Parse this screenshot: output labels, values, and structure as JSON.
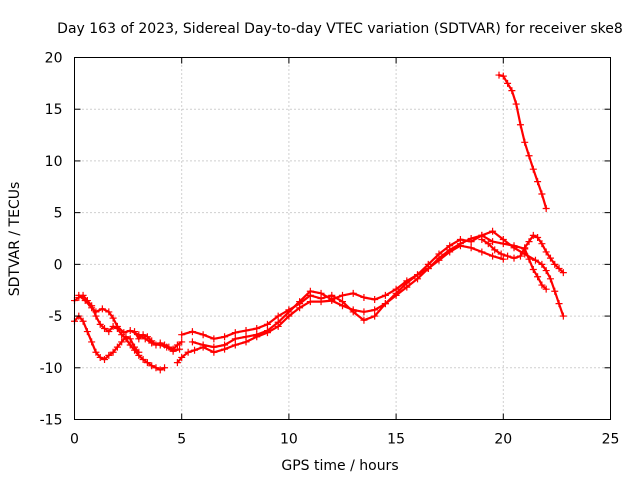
{
  "chart_data": {
    "type": "scatter",
    "title": "Day 163 of 2023, Sidereal Day-to-day VTEC variation (SDTVAR) for receiver ske8",
    "xlabel": "GPS time / hours",
    "ylabel": "SDTVAR / TECUs",
    "xlim": [
      0,
      25
    ],
    "ylim": [
      -15,
      20
    ],
    "x_ticks": [
      "0",
      "5",
      "10",
      "15",
      "20",
      "25"
    ],
    "y_ticks": [
      "-15",
      "-10",
      "-5",
      "0",
      "5",
      "10",
      "15",
      "20"
    ],
    "grid": true,
    "legend": "none",
    "marker": "+",
    "series_color": "#ff0000",
    "series": [
      {
        "name": "satellite-track-1",
        "x": [
          0.0,
          0.2,
          0.4,
          0.6,
          0.8,
          1.0,
          1.2,
          1.4,
          1.6,
          1.8,
          2.0,
          2.2,
          2.4,
          2.6,
          2.8,
          3.0,
          3.2,
          3.4,
          3.6,
          3.8,
          4.0,
          4.2
        ],
        "y": [
          -3.5,
          -3.2,
          -3.0,
          -3.5,
          -4.0,
          -5.0,
          -5.8,
          -6.2,
          -6.5,
          -6.0,
          -6.2,
          -6.8,
          -7.2,
          -7.8,
          -8.3,
          -8.8,
          -9.2,
          -9.5,
          -9.8,
          -10.0,
          -10.2,
          -10.0
        ]
      },
      {
        "name": "satellite-track-2",
        "x": [
          0.0,
          0.2,
          0.4,
          0.6,
          0.8,
          1.0,
          1.2,
          1.4,
          1.6,
          1.8,
          2.0,
          2.2,
          2.4,
          2.6,
          2.8,
          3.0
        ],
        "y": [
          -5.5,
          -5.0,
          -5.5,
          -6.5,
          -7.5,
          -8.5,
          -9.0,
          -9.2,
          -8.8,
          -8.5,
          -8.0,
          -7.5,
          -7.0,
          -7.2,
          -8.0,
          -8.5
        ]
      },
      {
        "name": "satellite-track-3",
        "x": [
          0.2,
          0.5,
          0.8,
          1.0,
          1.3,
          1.6,
          1.8,
          2.0,
          2.3,
          2.6,
          3.0,
          3.3,
          3.6,
          4.0,
          4.3,
          4.6,
          4.9
        ],
        "y": [
          -3.0,
          -3.5,
          -4.2,
          -4.6,
          -4.3,
          -4.6,
          -5.2,
          -6.0,
          -6.6,
          -6.4,
          -6.8,
          -7.2,
          -7.6,
          -7.8,
          -8.0,
          -8.4,
          -8.2
        ]
      },
      {
        "name": "satellite-track-4",
        "x": [
          2.8,
          3.0,
          3.2,
          3.4,
          3.6,
          3.8,
          4.0,
          4.2,
          4.4,
          4.6,
          4.8,
          5.0
        ],
        "y": [
          -6.5,
          -7.2,
          -6.8,
          -7.0,
          -7.4,
          -7.8,
          -7.6,
          -7.8,
          -8.0,
          -8.2,
          -7.8,
          -7.5
        ]
      },
      {
        "name": "satellite-track-5",
        "x": [
          4.8,
          5.0,
          5.3,
          5.6,
          6.0,
          6.5,
          7.0,
          7.5,
          8.0,
          8.5,
          9.0,
          9.5,
          10.0,
          10.5,
          11.0,
          11.5,
          12.0,
          12.5,
          13.0,
          13.5,
          14.0,
          14.5,
          15.0,
          15.5,
          16.0,
          16.5,
          17.0,
          17.5,
          18.0,
          18.5,
          19.0,
          19.5,
          20.0
        ],
        "y": [
          -9.5,
          -9.0,
          -8.5,
          -8.3,
          -8.0,
          -8.5,
          -8.2,
          -7.8,
          -7.5,
          -7.0,
          -6.6,
          -6.0,
          -5.0,
          -4.2,
          -3.6,
          -3.6,
          -3.5,
          -4.0,
          -4.4,
          -4.6,
          -4.4,
          -3.8,
          -3.0,
          -2.2,
          -1.4,
          -0.4,
          0.4,
          1.2,
          1.8,
          1.6,
          1.2,
          0.8,
          0.5
        ]
      },
      {
        "name": "satellite-track-6",
        "x": [
          5.0,
          5.5,
          6.0,
          6.5,
          7.0,
          7.5,
          8.0,
          8.5,
          9.0,
          9.5,
          10.0,
          10.5,
          11.0,
          11.5,
          12.0,
          12.5,
          13.0,
          13.5,
          14.0,
          14.5,
          15.0,
          15.5,
          16.0,
          16.5,
          17.0,
          17.5,
          18.0,
          18.5,
          19.0,
          19.5,
          20.0,
          20.5,
          21.0,
          21.2,
          21.4,
          21.6,
          21.8,
          22.0
        ],
        "y": [
          -6.8,
          -6.5,
          -6.8,
          -7.2,
          -7.0,
          -6.6,
          -6.4,
          -6.2,
          -5.8,
          -5.0,
          -4.4,
          -3.8,
          -3.0,
          -3.3,
          -3.0,
          -3.6,
          -4.6,
          -5.4,
          -5.0,
          -3.8,
          -2.8,
          -1.8,
          -1.0,
          -0.4,
          0.6,
          1.4,
          2.0,
          2.5,
          2.8,
          2.2,
          2.0,
          1.8,
          1.5,
          0.5,
          -0.5,
          -1.2,
          -2.0,
          -2.4
        ]
      },
      {
        "name": "satellite-track-7",
        "x": [
          5.5,
          6.0,
          6.5,
          7.0,
          7.5,
          8.0,
          8.5,
          9.0,
          9.5,
          10.0,
          10.5,
          11.0,
          11.5,
          12.0,
          12.5,
          13.0,
          13.5,
          14.0,
          14.5,
          15.0,
          15.5,
          16.0,
          16.5,
          17.0,
          17.5,
          18.0,
          18.5,
          19.0,
          19.5,
          20.0,
          20.5,
          21.0,
          21.5,
          21.8,
          22.0,
          22.2,
          22.4,
          22.6,
          22.8
        ],
        "y": [
          -7.5,
          -7.8,
          -8.0,
          -7.8,
          -7.2,
          -7.0,
          -6.8,
          -6.4,
          -5.6,
          -4.6,
          -3.6,
          -2.6,
          -2.8,
          -3.4,
          -3.0,
          -2.8,
          -3.2,
          -3.4,
          -3.0,
          -2.4,
          -1.6,
          -1.0,
          0.0,
          1.0,
          1.8,
          2.4,
          2.2,
          2.8,
          3.2,
          2.4,
          1.6,
          1.0,
          0.4,
          0.0,
          -0.6,
          -1.4,
          -2.6,
          -3.8,
          -5.0
        ]
      },
      {
        "name": "satellite-track-8",
        "x": [
          19.0,
          19.3,
          19.6,
          19.9,
          20.2,
          20.5,
          20.8,
          21.0,
          21.2,
          21.4,
          21.6,
          21.8,
          22.0,
          22.2,
          22.4,
          22.6,
          22.8
        ],
        "y": [
          2.4,
          2.0,
          1.4,
          1.0,
          0.8,
          0.6,
          0.8,
          1.6,
          2.2,
          2.8,
          2.6,
          2.0,
          1.2,
          0.6,
          0.0,
          -0.4,
          -0.8
        ]
      },
      {
        "name": "satellite-track-9",
        "x": [
          19.8,
          20.0,
          20.2,
          20.4,
          20.6,
          20.8,
          21.0,
          21.2,
          21.4,
          21.6,
          21.8,
          22.0
        ],
        "y": [
          18.3,
          18.2,
          17.5,
          16.8,
          15.5,
          13.5,
          11.8,
          10.5,
          9.2,
          8.0,
          6.8,
          5.4
        ]
      }
    ]
  }
}
